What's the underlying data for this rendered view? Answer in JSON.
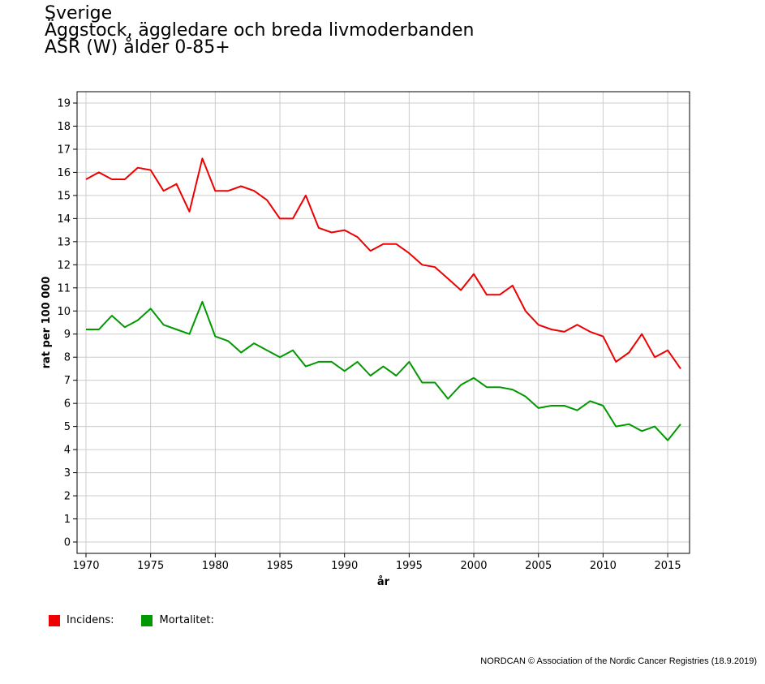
{
  "title_lines": [
    "Sverige",
    "Äggstock, äggledare och breda livmoderbanden",
    "ASR (W) ålder 0-85+"
  ],
  "legend": [
    {
      "label": "Incidens:",
      "color": "#ee0000"
    },
    {
      "label": "Mortalitet:",
      "color": "#009900"
    }
  ],
  "footer": "NORDCAN © Association of the Nordic Cancer Registries (18.9.2019)",
  "chart_data": {
    "type": "line",
    "xlabel": "år",
    "ylabel": "rat per 100 000",
    "xlim": [
      1970,
      2016
    ],
    "ylim": [
      0,
      19
    ],
    "xticks": [
      1970,
      1975,
      1980,
      1985,
      1990,
      1995,
      2000,
      2005,
      2010,
      2015
    ],
    "yticks": [
      0,
      1,
      2,
      3,
      4,
      5,
      6,
      7,
      8,
      9,
      10,
      11,
      12,
      13,
      14,
      15,
      16,
      17,
      18,
      19
    ],
    "grid": true,
    "legend_position": "bottom-left",
    "x": [
      1970,
      1971,
      1972,
      1973,
      1974,
      1975,
      1976,
      1977,
      1978,
      1979,
      1980,
      1981,
      1982,
      1983,
      1984,
      1985,
      1986,
      1987,
      1988,
      1989,
      1990,
      1991,
      1992,
      1993,
      1994,
      1995,
      1996,
      1997,
      1998,
      1999,
      2000,
      2001,
      2002,
      2003,
      2004,
      2005,
      2006,
      2007,
      2008,
      2009,
      2010,
      2011,
      2012,
      2013,
      2014,
      2015,
      2016
    ],
    "series": [
      {
        "name": "Incidens:",
        "color": "#ee0000",
        "values": [
          15.7,
          16.0,
          15.7,
          15.7,
          16.2,
          16.1,
          15.2,
          15.5,
          14.3,
          16.6,
          15.2,
          15.2,
          15.4,
          15.2,
          14.8,
          14.0,
          14.0,
          15.0,
          13.6,
          13.4,
          13.5,
          13.2,
          12.6,
          12.9,
          12.9,
          12.5,
          12.0,
          11.9,
          11.4,
          10.9,
          11.6,
          10.7,
          10.7,
          11.1,
          10.0,
          9.4,
          9.2,
          9.1,
          9.4,
          9.1,
          8.9,
          7.8,
          8.2,
          9.0,
          8.0,
          8.3,
          7.5
        ]
      },
      {
        "name": "Mortalitet:",
        "color": "#009900",
        "values": [
          9.2,
          9.2,
          9.8,
          9.3,
          9.6,
          10.1,
          9.4,
          9.2,
          9.0,
          10.4,
          8.9,
          8.7,
          8.2,
          8.6,
          8.3,
          8.0,
          8.3,
          7.6,
          7.8,
          7.8,
          7.4,
          7.8,
          7.2,
          7.6,
          7.2,
          7.8,
          6.9,
          6.9,
          6.2,
          6.8,
          7.1,
          6.7,
          6.7,
          6.6,
          6.3,
          5.8,
          5.9,
          5.9,
          5.7,
          6.1,
          5.9,
          5.0,
          5.1,
          4.8,
          5.0,
          4.4,
          5.1
        ]
      }
    ]
  }
}
